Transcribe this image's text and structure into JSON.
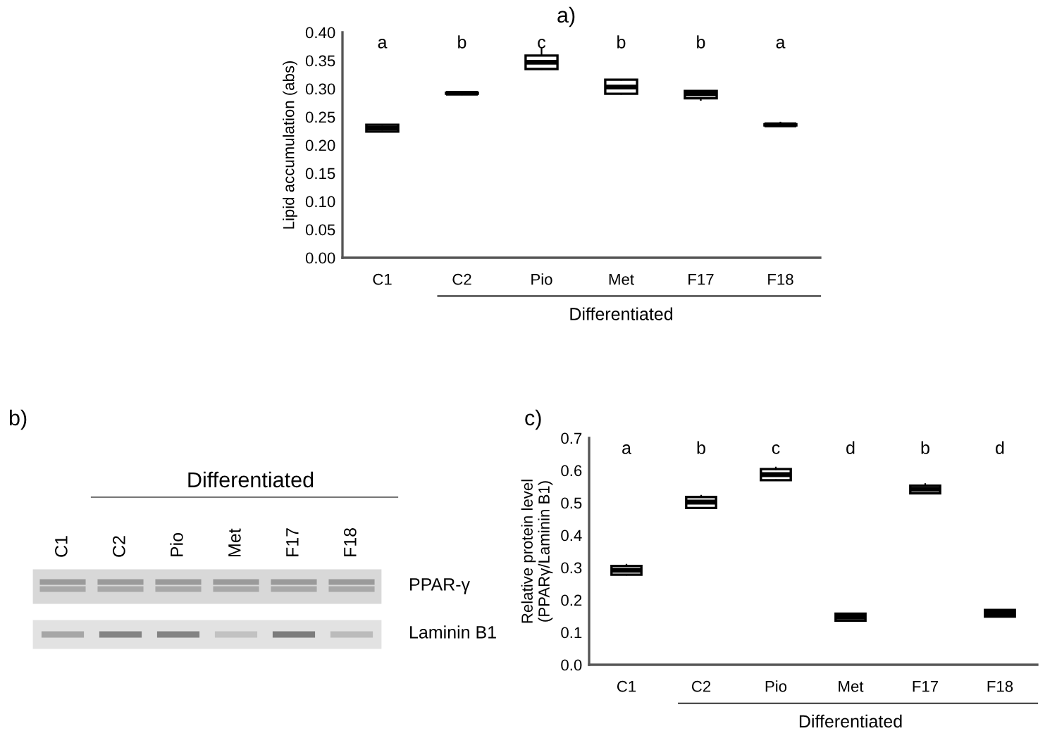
{
  "chart_data": [
    {
      "type": "box",
      "title": "a)",
      "ylabel": "Lipid accumulation (abs)",
      "categories": [
        "C1",
        "C2",
        "Pio",
        "Met",
        "F17",
        "F18"
      ],
      "boxes": [
        {
          "low": 0.224,
          "q1": 0.224,
          "median": 0.23,
          "q3": 0.236,
          "high": 0.236
        },
        {
          "low": 0.29,
          "q1": 0.291,
          "median": 0.292,
          "q3": 0.293,
          "high": 0.294
        },
        {
          "low": 0.335,
          "q1": 0.335,
          "median": 0.347,
          "q3": 0.359,
          "high": 0.372
        },
        {
          "low": 0.291,
          "q1": 0.291,
          "median": 0.303,
          "q3": 0.316,
          "high": 0.316
        },
        {
          "low": 0.28,
          "q1": 0.283,
          "median": 0.291,
          "q3": 0.296,
          "high": 0.296
        },
        {
          "low": 0.235,
          "q1": 0.235,
          "median": 0.236,
          "q3": 0.237,
          "high": 0.24
        }
      ],
      "ylim": [
        0,
        0.4
      ],
      "yticks": [
        {
          "value": 0,
          "label": "0.00"
        },
        {
          "value": 0.05,
          "label": "0.05"
        },
        {
          "value": 0.1,
          "label": "0.10"
        },
        {
          "value": 0.15,
          "label": "0.15"
        },
        {
          "value": 0.2,
          "label": "0.20"
        },
        {
          "value": 0.25,
          "label": "0.25"
        },
        {
          "value": 0.3,
          "label": "0.30"
        },
        {
          "value": 0.35,
          "label": "0.35"
        },
        {
          "value": 0.4,
          "label": "0.40"
        }
      ],
      "grid": false,
      "annotations": [
        "a",
        "b",
        "c",
        "b",
        "b",
        "a",
        "Differentiated"
      ]
    },
    {
      "type": "other",
      "title": "b)",
      "categories": [
        "C1",
        "C2",
        "Pio",
        "Met",
        "F17",
        "F18"
      ],
      "annotations": [
        "Differentiated",
        "PPAR-γ",
        "Laminin B1"
      ]
    },
    {
      "type": "box",
      "title": "c)",
      "ylabel": "Relative protein level\n(PPARγ/Laminin B1)",
      "categories": [
        "C1",
        "C2",
        "Pio",
        "Met",
        "F17",
        "F18"
      ],
      "boxes": [
        {
          "low": 0.278,
          "q1": 0.278,
          "median": 0.292,
          "q3": 0.305,
          "high": 0.309
        },
        {
          "low": 0.484,
          "q1": 0.484,
          "median": 0.502,
          "q3": 0.518,
          "high": 0.522
        },
        {
          "low": 0.57,
          "q1": 0.57,
          "median": 0.587,
          "q3": 0.604,
          "high": 0.609
        },
        {
          "low": 0.136,
          "q1": 0.136,
          "median": 0.147,
          "q3": 0.158,
          "high": 0.158
        },
        {
          "low": 0.529,
          "q1": 0.529,
          "median": 0.542,
          "q3": 0.553,
          "high": 0.558
        },
        {
          "low": 0.149,
          "q1": 0.149,
          "median": 0.158,
          "q3": 0.169,
          "high": 0.169
        }
      ],
      "ylim": [
        0,
        0.7
      ],
      "yticks": [
        {
          "value": 0,
          "label": "0.0"
        },
        0.1,
        0.2,
        0.3,
        0.4,
        0.5,
        0.6,
        0.7
      ],
      "grid": false,
      "annotations": [
        "a",
        "b",
        "c",
        "d",
        "b",
        "d",
        "Differentiated"
      ]
    }
  ]
}
